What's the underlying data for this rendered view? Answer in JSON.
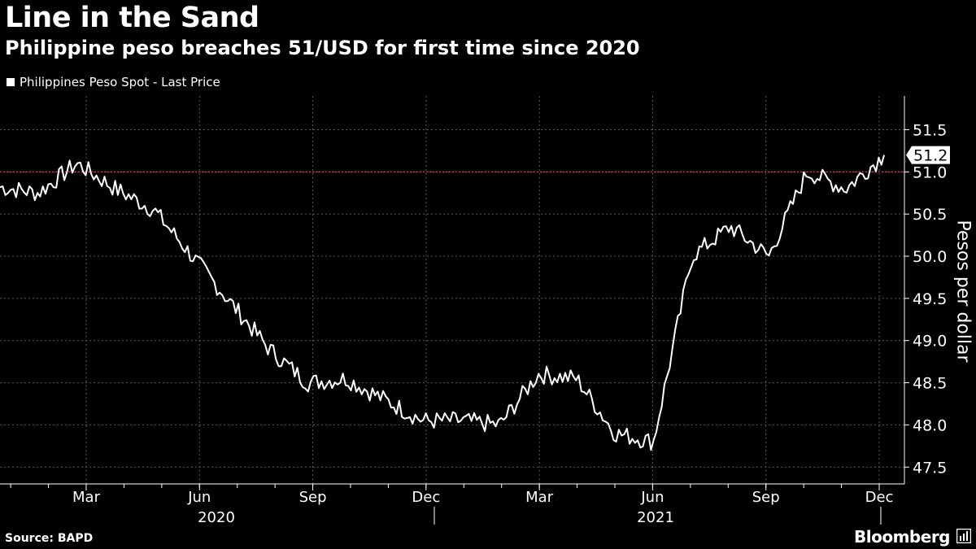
{
  "header": {
    "title": "Line in the Sand",
    "subtitle": "Philippine peso breaches 51/USD for first time since 2020"
  },
  "footer": {
    "source": "Source: BAPD",
    "brand": "Bloomberg"
  },
  "colors": {
    "background": "#000000",
    "line": "#ffffff",
    "reference_line": "#d0343a",
    "grid": "#5a5a5a"
  },
  "chart_data": {
    "type": "line",
    "title": "Line in the Sand",
    "subtitle": "Philippine peso breaches 51/USD for first time since 2020",
    "xlabel": "",
    "ylabel": "Pesos per dollar",
    "ylim": [
      47.3,
      51.9
    ],
    "y_ticks": [
      "47.5",
      "48.0",
      "48.5",
      "49.0",
      "49.5",
      "50.0",
      "50.5",
      "51.0",
      "51.5"
    ],
    "grid": true,
    "legend": {
      "position": "top-left",
      "entries": [
        "Philippines Peso Spot - Last Price"
      ]
    },
    "x_axis": {
      "month_ticks": [
        "Mar",
        "Jun",
        "Sep",
        "Dec",
        "Mar",
        "Jun",
        "Sep",
        "Dec"
      ],
      "years": [
        "2020",
        "2021"
      ]
    },
    "reference_line": {
      "value": 51.0,
      "style": "dotted"
    },
    "last_value_label": "51.2",
    "series": [
      {
        "name": "Philippines Peso Spot - Last Price",
        "x": [
          "2020-01",
          "2020-02",
          "2020-03",
          "2020-04",
          "2020-05",
          "2020-06",
          "2020-07",
          "2020-08",
          "2020-09",
          "2020-10",
          "2020-11",
          "2020-12",
          "2021-01",
          "2021-02",
          "2021-03",
          "2021-04",
          "2021-05",
          "2021-06",
          "2021-07",
          "2021-08",
          "2021-09",
          "2021-10",
          "2021-11",
          "2021-12"
        ],
        "values": [
          50.82,
          50.75,
          51.1,
          50.8,
          50.55,
          50.0,
          49.45,
          48.9,
          48.5,
          48.55,
          48.3,
          48.05,
          48.05,
          48.0,
          48.6,
          48.55,
          47.9,
          47.8,
          50.0,
          50.35,
          50.0,
          51.0,
          50.8,
          51.2
        ]
      }
    ]
  }
}
